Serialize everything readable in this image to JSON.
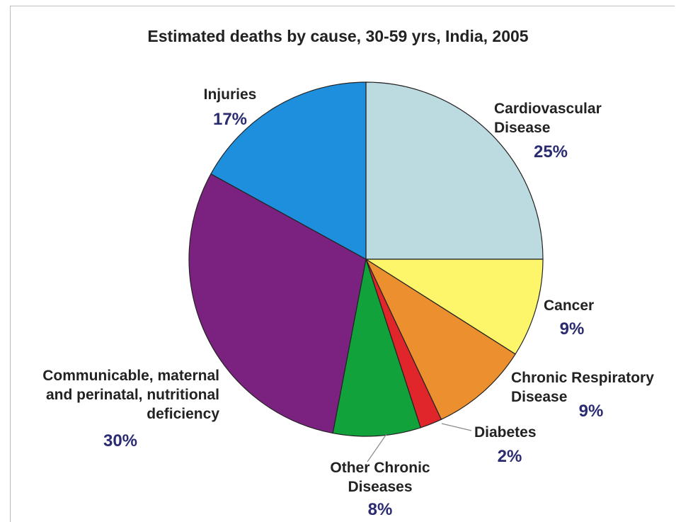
{
  "chart_data": {
    "type": "pie",
    "title": "Estimated deaths by cause, 30-59 yrs, India, 2005",
    "slices": [
      {
        "key": "cardiovascular",
        "label_lines": [
          "Cardiovascular",
          "Disease"
        ],
        "value": 25,
        "pct_label": "25%",
        "color": "#bcdbe0"
      },
      {
        "key": "cancer",
        "label_lines": [
          "Cancer"
        ],
        "value": 9,
        "pct_label": "9%",
        "color": "#fdf66b"
      },
      {
        "key": "chronic-respiratory",
        "label_lines": [
          "Chronic Respiratory",
          "Disease"
        ],
        "value": 9,
        "pct_label": "9%",
        "color": "#ec8f2e"
      },
      {
        "key": "diabetes",
        "label_lines": [
          "Diabetes"
        ],
        "value": 2,
        "pct_label": "2%",
        "color": "#e0262b"
      },
      {
        "key": "other-chronic",
        "label_lines": [
          "Other Chronic",
          "Diseases"
        ],
        "value": 8,
        "pct_label": "8%",
        "color": "#11a23b"
      },
      {
        "key": "communicable",
        "label_lines": [
          "Communicable, maternal",
          "and perinatal, nutritional",
          "deficiency"
        ],
        "value": 30,
        "pct_label": "30%",
        "color": "#7b2280"
      },
      {
        "key": "injuries",
        "label_lines": [
          "Injuries"
        ],
        "value": 17,
        "pct_label": "17%",
        "color": "#1e8fdc"
      }
    ]
  }
}
